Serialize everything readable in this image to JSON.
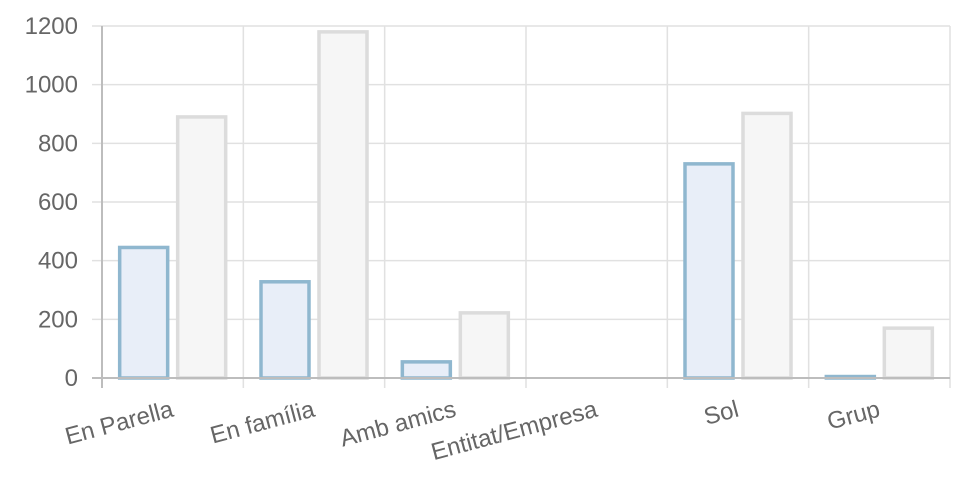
{
  "chart_data": {
    "type": "bar",
    "categories": [
      "En Parella",
      "En família",
      "Amb amics",
      "Entitat/Empresa",
      "Sol",
      "Grup"
    ],
    "series": [
      {
        "values": [
          445,
          328,
          55,
          0,
          730,
          5
        ],
        "fill": "#e8eef8",
        "stroke": "#8fb7cf"
      },
      {
        "values": [
          890,
          1180,
          222,
          0,
          902,
          170
        ],
        "fill": "#f6f6f6",
        "stroke": "#dcdcdc"
      }
    ],
    "y_ticks": [
      "0",
      "200",
      "400",
      "600",
      "800",
      "1000",
      "1200"
    ],
    "ylim": [
      0,
      1200
    ],
    "grid": true,
    "xlabel": "",
    "ylabel": "",
    "title": ""
  }
}
